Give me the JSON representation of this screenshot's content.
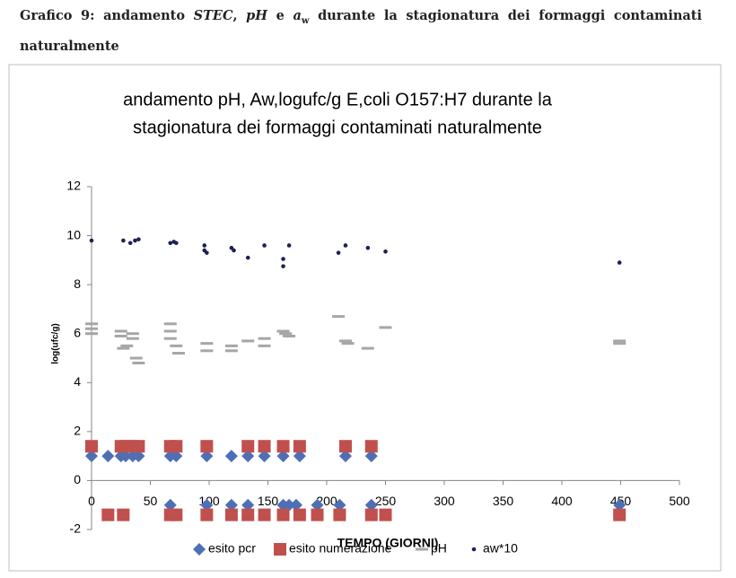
{
  "caption": {
    "parts": [
      {
        "text": "Grafico 9: andamento "
      },
      {
        "text": "STEC",
        "style": "italic"
      },
      {
        "text": ", "
      },
      {
        "text": "pH",
        "style": "italic"
      },
      {
        "text": " e "
      },
      {
        "text": "a",
        "style": "italic"
      },
      {
        "text": "w",
        "style": "sub"
      },
      {
        "text": " durante la stagionatura dei formaggi contaminati naturalmente"
      }
    ]
  },
  "chart_data": {
    "type": "scatter",
    "title": [
      "andamento pH, Aw,logufc/g E,coli O157:H7 durante la",
      "stagionatura dei formaggi contaminati naturalmente"
    ],
    "x_label": "TEMPO (GIORNI)",
    "y_label": "log(ufc/g)",
    "xlim": [
      0,
      500
    ],
    "xticks": [
      0,
      50,
      100,
      150,
      200,
      250,
      300,
      350,
      400,
      450,
      500
    ],
    "ylim": [
      -2,
      12
    ],
    "yticks": [
      -2,
      0,
      2,
      4,
      6,
      8,
      10,
      12
    ],
    "series": [
      {
        "name": "esito pcr",
        "color": "#4f6fb5",
        "marker": "diamond",
        "x": [
          0,
          14,
          25,
          29,
          35,
          40,
          67,
          72,
          98,
          119,
          133,
          147,
          163,
          177,
          216,
          238,
          67,
          98,
          119,
          133,
          163,
          168,
          174,
          192,
          211,
          238,
          449
        ],
        "values": [
          1,
          1,
          1,
          1,
          1,
          1,
          1,
          1,
          1,
          1,
          1,
          1,
          1,
          1,
          1,
          1,
          -1,
          -1,
          -1,
          -1,
          -1,
          -1,
          -1,
          -1,
          -1,
          -1,
          -1
        ]
      },
      {
        "name": "esito numerazione",
        "color": "#c0504d",
        "marker": "square",
        "x": [
          0,
          25,
          29,
          35,
          40,
          67,
          72,
          98,
          133,
          147,
          163,
          177,
          216,
          238,
          14,
          27,
          67,
          72,
          98,
          119,
          133,
          147,
          163,
          177,
          192,
          211,
          238,
          250,
          449
        ],
        "values": [
          1.4,
          1.4,
          1.4,
          1.4,
          1.4,
          1.4,
          1.4,
          1.4,
          1.4,
          1.4,
          1.4,
          1.4,
          1.4,
          1.4,
          -1.4,
          -1.4,
          -1.4,
          -1.4,
          -1.4,
          -1.4,
          -1.4,
          -1.4,
          -1.4,
          -1.4,
          -1.4,
          -1.4,
          -1.4,
          -1.4,
          -1.4
        ]
      },
      {
        "name": "pH",
        "color": "#a6a6a6",
        "marker": "dash",
        "x": [
          0,
          0,
          0,
          25,
          25,
          27,
          30,
          35,
          35,
          38,
          40,
          67,
          67,
          67,
          72,
          74,
          98,
          98,
          119,
          119,
          133,
          147,
          147,
          163,
          165,
          168,
          210,
          216,
          218,
          235,
          250,
          449,
          449
        ],
        "values": [
          6.4,
          6.2,
          6.0,
          6.1,
          5.9,
          5.4,
          5.5,
          6.0,
          5.8,
          5.0,
          4.8,
          6.4,
          6.1,
          5.8,
          5.5,
          5.2,
          5.6,
          5.3,
          5.5,
          5.3,
          5.7,
          5.8,
          5.5,
          6.1,
          6.0,
          5.9,
          6.7,
          5.7,
          5.6,
          5.4,
          6.25,
          5.7,
          5.6
        ]
      },
      {
        "name": "aw*10",
        "color": "#1f1f5a",
        "marker": "dot",
        "x": [
          0,
          27,
          33,
          37,
          40,
          67,
          70,
          72,
          96,
          96,
          98,
          119,
          121,
          133,
          147,
          163,
          163,
          168,
          210,
          216,
          235,
          250,
          449
        ],
        "values": [
          9.8,
          9.8,
          9.7,
          9.8,
          9.85,
          9.7,
          9.75,
          9.7,
          9.6,
          9.4,
          9.3,
          9.5,
          9.4,
          9.1,
          9.6,
          9.05,
          8.75,
          9.6,
          9.3,
          9.6,
          9.5,
          9.35,
          8.9
        ]
      }
    ]
  }
}
